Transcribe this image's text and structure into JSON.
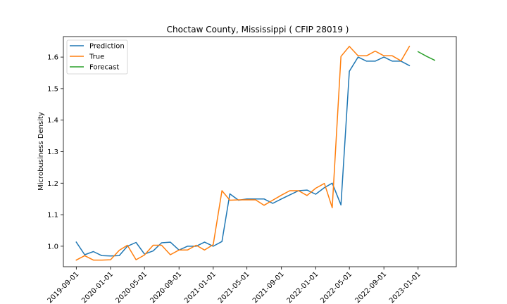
{
  "chart_data": {
    "type": "line",
    "title": "Choctaw County, Mississippi ( CFIP 28019 )",
    "xlabel": "",
    "ylabel": "Microbusiness Density",
    "x_ticks": [
      "2019-09-01",
      "2020-01-01",
      "2020-05-01",
      "2020-09-01",
      "2021-01-01",
      "2021-05-01",
      "2021-09-01",
      "2022-01-01",
      "2022-05-01",
      "2022-09-01",
      "2023-01-01"
    ],
    "y_ticks": [
      "1.0",
      "1.1",
      "1.2",
      "1.3",
      "1.4",
      "1.5",
      "1.6"
    ],
    "xlim": [
      "2019-07-17",
      "2023-05-17"
    ],
    "ylim": [
      0.935,
      1.665
    ],
    "grid": false,
    "legend_position": "upper left",
    "series": [
      {
        "name": "Prediction",
        "color": "#1f77b4",
        "points": [
          [
            "2019-09-01",
            1.013
          ],
          [
            "2019-10-01",
            0.973
          ],
          [
            "2019-11-01",
            0.983
          ],
          [
            "2019-12-01",
            0.97
          ],
          [
            "2020-01-01",
            0.969
          ],
          [
            "2020-02-01",
            0.97
          ],
          [
            "2020-03-01",
            1.0
          ],
          [
            "2020-04-01",
            1.012
          ],
          [
            "2020-05-01",
            0.975
          ],
          [
            "2020-06-01",
            0.985
          ],
          [
            "2020-07-01",
            1.011
          ],
          [
            "2020-08-01",
            1.013
          ],
          [
            "2020-09-01",
            0.988
          ],
          [
            "2020-10-01",
            1.0
          ],
          [
            "2020-11-01",
            1.0
          ],
          [
            "2020-12-01",
            1.013
          ],
          [
            "2021-01-01",
            1.0
          ],
          [
            "2021-02-01",
            1.015
          ],
          [
            "2021-03-01",
            1.166
          ],
          [
            "2021-04-01",
            1.146
          ],
          [
            "2021-05-01",
            1.15
          ],
          [
            "2021-06-01",
            1.15
          ],
          [
            "2021-07-01",
            1.15
          ],
          [
            "2021-08-01",
            1.136
          ],
          [
            "2021-09-01",
            1.15
          ],
          [
            "2021-10-01",
            1.163
          ],
          [
            "2021-11-01",
            1.176
          ],
          [
            "2021-12-01",
            1.178
          ],
          [
            "2022-01-01",
            1.165
          ],
          [
            "2022-02-01",
            1.186
          ],
          [
            "2022-03-01",
            1.2
          ],
          [
            "2022-04-01",
            1.131
          ],
          [
            "2022-05-01",
            1.555
          ],
          [
            "2022-06-01",
            1.6
          ],
          [
            "2022-07-01",
            1.587
          ],
          [
            "2022-08-01",
            1.587
          ],
          [
            "2022-09-01",
            1.6
          ],
          [
            "2022-10-01",
            1.587
          ],
          [
            "2022-11-01",
            1.587
          ],
          [
            "2022-12-01",
            1.573
          ]
        ]
      },
      {
        "name": "True",
        "color": "#ff7f0e",
        "points": [
          [
            "2019-09-01",
            0.956
          ],
          [
            "2019-10-01",
            0.97
          ],
          [
            "2019-11-01",
            0.956
          ],
          [
            "2019-12-01",
            0.956
          ],
          [
            "2020-01-01",
            0.957
          ],
          [
            "2020-02-01",
            0.987
          ],
          [
            "2020-03-01",
            1.003
          ],
          [
            "2020-04-01",
            0.957
          ],
          [
            "2020-05-01",
            0.972
          ],
          [
            "2020-06-01",
            1.003
          ],
          [
            "2020-07-01",
            1.003
          ],
          [
            "2020-08-01",
            0.973
          ],
          [
            "2020-09-01",
            0.988
          ],
          [
            "2020-10-01",
            0.988
          ],
          [
            "2020-11-01",
            1.003
          ],
          [
            "2020-12-01",
            0.988
          ],
          [
            "2021-01-01",
            1.005
          ],
          [
            "2021-02-01",
            1.176
          ],
          [
            "2021-03-01",
            1.146
          ],
          [
            "2021-04-01",
            1.147
          ],
          [
            "2021-05-01",
            1.147
          ],
          [
            "2021-06-01",
            1.147
          ],
          [
            "2021-07-01",
            1.13
          ],
          [
            "2021-08-01",
            1.146
          ],
          [
            "2021-09-01",
            1.162
          ],
          [
            "2021-10-01",
            1.176
          ],
          [
            "2021-11-01",
            1.176
          ],
          [
            "2021-12-01",
            1.161
          ],
          [
            "2022-01-01",
            1.184
          ],
          [
            "2022-02-01",
            1.199
          ],
          [
            "2022-03-01",
            1.122
          ],
          [
            "2022-04-01",
            1.602
          ],
          [
            "2022-05-01",
            1.634
          ],
          [
            "2022-06-01",
            1.604
          ],
          [
            "2022-07-01",
            1.604
          ],
          [
            "2022-08-01",
            1.619
          ],
          [
            "2022-09-01",
            1.604
          ],
          [
            "2022-10-01",
            1.604
          ],
          [
            "2022-11-01",
            1.588
          ],
          [
            "2022-12-01",
            1.634
          ]
        ]
      },
      {
        "name": "Forecast",
        "color": "#2ca02c",
        "points": [
          [
            "2023-01-01",
            1.617
          ],
          [
            "2023-02-01",
            1.602
          ],
          [
            "2023-03-01",
            1.59
          ]
        ]
      }
    ]
  }
}
